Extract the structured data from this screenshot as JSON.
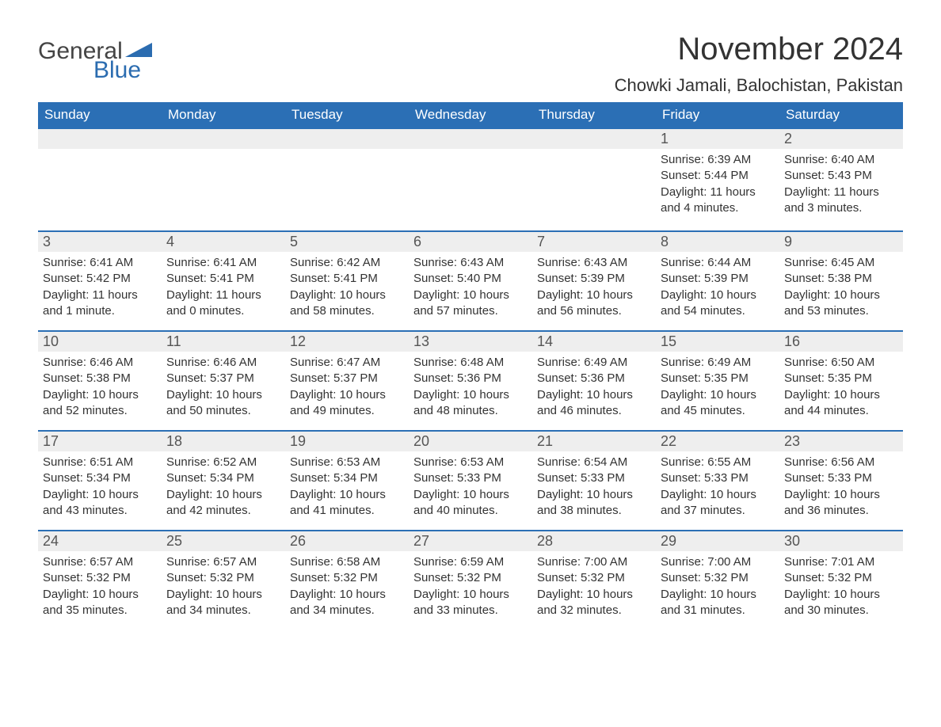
{
  "logo": {
    "word1": "General",
    "word2": "Blue"
  },
  "title": "November 2024",
  "location": "Chowki Jamali, Balochistan, Pakistan",
  "colors": {
    "header_bg": "#2b6fb5",
    "header_text": "#ffffff",
    "daynum_bg": "#eeeeee",
    "day_border": "#2b6fb5",
    "page_bg": "#ffffff",
    "text": "#333333",
    "logo_accent": "#2b6cb0"
  },
  "weekdays": [
    "Sunday",
    "Monday",
    "Tuesday",
    "Wednesday",
    "Thursday",
    "Friday",
    "Saturday"
  ],
  "weeks": [
    [
      null,
      null,
      null,
      null,
      null,
      {
        "n": "1",
        "sr": "Sunrise: 6:39 AM",
        "ss": "Sunset: 5:44 PM",
        "dl": "Daylight: 11 hours and 4 minutes."
      },
      {
        "n": "2",
        "sr": "Sunrise: 6:40 AM",
        "ss": "Sunset: 5:43 PM",
        "dl": "Daylight: 11 hours and 3 minutes."
      }
    ],
    [
      {
        "n": "3",
        "sr": "Sunrise: 6:41 AM",
        "ss": "Sunset: 5:42 PM",
        "dl": "Daylight: 11 hours and 1 minute."
      },
      {
        "n": "4",
        "sr": "Sunrise: 6:41 AM",
        "ss": "Sunset: 5:41 PM",
        "dl": "Daylight: 11 hours and 0 minutes."
      },
      {
        "n": "5",
        "sr": "Sunrise: 6:42 AM",
        "ss": "Sunset: 5:41 PM",
        "dl": "Daylight: 10 hours and 58 minutes."
      },
      {
        "n": "6",
        "sr": "Sunrise: 6:43 AM",
        "ss": "Sunset: 5:40 PM",
        "dl": "Daylight: 10 hours and 57 minutes."
      },
      {
        "n": "7",
        "sr": "Sunrise: 6:43 AM",
        "ss": "Sunset: 5:39 PM",
        "dl": "Daylight: 10 hours and 56 minutes."
      },
      {
        "n": "8",
        "sr": "Sunrise: 6:44 AM",
        "ss": "Sunset: 5:39 PM",
        "dl": "Daylight: 10 hours and 54 minutes."
      },
      {
        "n": "9",
        "sr": "Sunrise: 6:45 AM",
        "ss": "Sunset: 5:38 PM",
        "dl": "Daylight: 10 hours and 53 minutes."
      }
    ],
    [
      {
        "n": "10",
        "sr": "Sunrise: 6:46 AM",
        "ss": "Sunset: 5:38 PM",
        "dl": "Daylight: 10 hours and 52 minutes."
      },
      {
        "n": "11",
        "sr": "Sunrise: 6:46 AM",
        "ss": "Sunset: 5:37 PM",
        "dl": "Daylight: 10 hours and 50 minutes."
      },
      {
        "n": "12",
        "sr": "Sunrise: 6:47 AM",
        "ss": "Sunset: 5:37 PM",
        "dl": "Daylight: 10 hours and 49 minutes."
      },
      {
        "n": "13",
        "sr": "Sunrise: 6:48 AM",
        "ss": "Sunset: 5:36 PM",
        "dl": "Daylight: 10 hours and 48 minutes."
      },
      {
        "n": "14",
        "sr": "Sunrise: 6:49 AM",
        "ss": "Sunset: 5:36 PM",
        "dl": "Daylight: 10 hours and 46 minutes."
      },
      {
        "n": "15",
        "sr": "Sunrise: 6:49 AM",
        "ss": "Sunset: 5:35 PM",
        "dl": "Daylight: 10 hours and 45 minutes."
      },
      {
        "n": "16",
        "sr": "Sunrise: 6:50 AM",
        "ss": "Sunset: 5:35 PM",
        "dl": "Daylight: 10 hours and 44 minutes."
      }
    ],
    [
      {
        "n": "17",
        "sr": "Sunrise: 6:51 AM",
        "ss": "Sunset: 5:34 PM",
        "dl": "Daylight: 10 hours and 43 minutes."
      },
      {
        "n": "18",
        "sr": "Sunrise: 6:52 AM",
        "ss": "Sunset: 5:34 PM",
        "dl": "Daylight: 10 hours and 42 minutes."
      },
      {
        "n": "19",
        "sr": "Sunrise: 6:53 AM",
        "ss": "Sunset: 5:34 PM",
        "dl": "Daylight: 10 hours and 41 minutes."
      },
      {
        "n": "20",
        "sr": "Sunrise: 6:53 AM",
        "ss": "Sunset: 5:33 PM",
        "dl": "Daylight: 10 hours and 40 minutes."
      },
      {
        "n": "21",
        "sr": "Sunrise: 6:54 AM",
        "ss": "Sunset: 5:33 PM",
        "dl": "Daylight: 10 hours and 38 minutes."
      },
      {
        "n": "22",
        "sr": "Sunrise: 6:55 AM",
        "ss": "Sunset: 5:33 PM",
        "dl": "Daylight: 10 hours and 37 minutes."
      },
      {
        "n": "23",
        "sr": "Sunrise: 6:56 AM",
        "ss": "Sunset: 5:33 PM",
        "dl": "Daylight: 10 hours and 36 minutes."
      }
    ],
    [
      {
        "n": "24",
        "sr": "Sunrise: 6:57 AM",
        "ss": "Sunset: 5:32 PM",
        "dl": "Daylight: 10 hours and 35 minutes."
      },
      {
        "n": "25",
        "sr": "Sunrise: 6:57 AM",
        "ss": "Sunset: 5:32 PM",
        "dl": "Daylight: 10 hours and 34 minutes."
      },
      {
        "n": "26",
        "sr": "Sunrise: 6:58 AM",
        "ss": "Sunset: 5:32 PM",
        "dl": "Daylight: 10 hours and 34 minutes."
      },
      {
        "n": "27",
        "sr": "Sunrise: 6:59 AM",
        "ss": "Sunset: 5:32 PM",
        "dl": "Daylight: 10 hours and 33 minutes."
      },
      {
        "n": "28",
        "sr": "Sunrise: 7:00 AM",
        "ss": "Sunset: 5:32 PM",
        "dl": "Daylight: 10 hours and 32 minutes."
      },
      {
        "n": "29",
        "sr": "Sunrise: 7:00 AM",
        "ss": "Sunset: 5:32 PM",
        "dl": "Daylight: 10 hours and 31 minutes."
      },
      {
        "n": "30",
        "sr": "Sunrise: 7:01 AM",
        "ss": "Sunset: 5:32 PM",
        "dl": "Daylight: 10 hours and 30 minutes."
      }
    ]
  ]
}
